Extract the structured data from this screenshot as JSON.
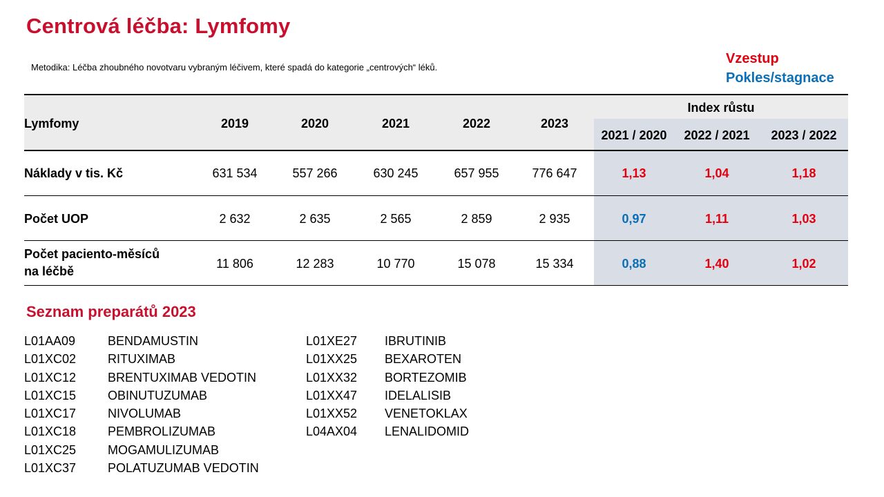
{
  "title": "Centrová léčba: Lymfomy",
  "methodology": "Metodika: Léčba zhoubného novotvaru vybraným léčivem, které spadá do kategorie „centrových“ léků.",
  "legend": {
    "increase": "Vzestup",
    "decrease": "Pokles/stagnace",
    "increase_color": "#e3000f",
    "decrease_color": "#0a6fb7"
  },
  "table": {
    "row_header": "Lymfomy",
    "years": [
      "2019",
      "2020",
      "2021",
      "2022",
      "2023"
    ],
    "index_header": "Index růstu",
    "index_cols": [
      "2021 / 2020",
      "2022 / 2021",
      "2023 / 2022"
    ],
    "rows": [
      {
        "label": "Náklady v tis. Kč",
        "values": [
          "631 534",
          "557 266",
          "630 245",
          "657 955",
          "776 647"
        ],
        "index": [
          "1,13",
          "1,04",
          "1,18"
        ],
        "trend": [
          "up",
          "up",
          "up"
        ]
      },
      {
        "label": "Počet UOP",
        "values": [
          "2 632",
          "2 635",
          "2 565",
          "2 859",
          "2 935"
        ],
        "index": [
          "0,97",
          "1,11",
          "1,03"
        ],
        "trend": [
          "down",
          "up",
          "up"
        ]
      },
      {
        "label_line1": "Počet paciento-měsíců",
        "label_line2": "na léčbě",
        "values": [
          "11 806",
          "12 283",
          "10 770",
          "15 078",
          "15 334"
        ],
        "index": [
          "0,88",
          "1,40",
          "1,02"
        ],
        "trend": [
          "down",
          "up",
          "up"
        ]
      }
    ]
  },
  "drug_list_title": "Seznam preparátů 2023",
  "drugs_col1": [
    {
      "code": "L01AA09",
      "name": "BENDAMUSTIN"
    },
    {
      "code": "L01XC02",
      "name": "RITUXIMAB"
    },
    {
      "code": "L01XC12",
      "name": "BRENTUXIMAB VEDOTIN"
    },
    {
      "code": "L01XC15",
      "name": "OBINUTUZUMAB"
    },
    {
      "code": "L01XC17",
      "name": "NIVOLUMAB"
    },
    {
      "code": "L01XC18",
      "name": "PEMBROLIZUMAB"
    },
    {
      "code": "L01XC25",
      "name": "MOGAMULIZUMAB"
    },
    {
      "code": "L01XC37",
      "name": "POLATUZUMAB VEDOTIN"
    }
  ],
  "drugs_col2": [
    {
      "code": "L01XE27",
      "name": "IBRUTINIB"
    },
    {
      "code": "L01XX25",
      "name": "BEXAROTEN"
    },
    {
      "code": "L01XX32",
      "name": "BORTEZOMIB"
    },
    {
      "code": "L01XX47",
      "name": "IDELALISIB"
    },
    {
      "code": "L01XX52",
      "name": "VENETOKLAX"
    },
    {
      "code": "L04AX04",
      "name": "LENALIDOMID"
    }
  ]
}
